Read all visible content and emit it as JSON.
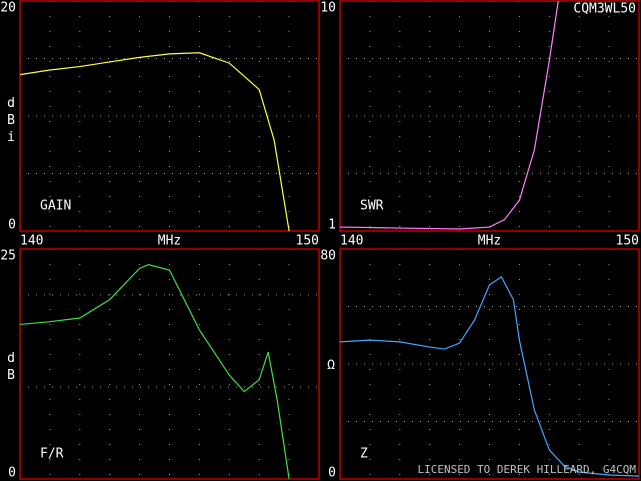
{
  "labels": {
    "model": "CQM3WL50",
    "license": "LICENSED TO DEREK HILLEARD, G4CQM"
  },
  "chart_data": [
    {
      "type": "line",
      "annotation": "GAIN",
      "ylabel": "dBi",
      "xlabel": "MHz",
      "xlim": [
        140,
        150
      ],
      "xticks": [
        140,
        150
      ],
      "xgrid": [
        141,
        142,
        143,
        144,
        145,
        146,
        147,
        148,
        149
      ],
      "ylim": [
        0,
        20
      ],
      "yticks": [
        0,
        20
      ],
      "ygrid": [
        5,
        10,
        15
      ],
      "x": [
        140,
        141,
        142,
        143,
        144,
        145,
        146,
        147,
        148,
        148.5,
        149
      ],
      "series": [
        {
          "color": "#ffff40",
          "values": [
            13.6,
            14.0,
            14.3,
            14.7,
            15.1,
            15.4,
            15.5,
            14.6,
            12.3,
            7.9,
            0
          ]
        }
      ]
    },
    {
      "type": "line",
      "annotation": "SWR",
      "xlabel": "MHz",
      "log_y": true,
      "xlim": [
        140,
        150
      ],
      "xticks": [
        140,
        150
      ],
      "xgrid": [
        141,
        142,
        143,
        144,
        145,
        146,
        147,
        148,
        149
      ],
      "ylim": [
        1,
        10
      ],
      "yticks": [
        1,
        10
      ],
      "ygrid": [
        1.78,
        3.16,
        5.62
      ],
      "x": [
        140,
        142,
        144,
        145,
        145.5,
        146,
        146.5,
        147,
        147.3
      ],
      "series": [
        {
          "color": "#ff80ff",
          "values": [
            1.04,
            1.03,
            1.02,
            1.04,
            1.12,
            1.36,
            2.25,
            5.5,
            10
          ]
        }
      ]
    },
    {
      "type": "line",
      "annotation": "F/R",
      "ylabel": "dB",
      "xlim": [
        140,
        150
      ],
      "xgrid": [
        141,
        142,
        143,
        144,
        145,
        146,
        147,
        148,
        149
      ],
      "ylim": [
        0,
        25
      ],
      "yticks": [
        0,
        25
      ],
      "ygrid": [
        10,
        20
      ],
      "x": [
        140,
        141,
        142,
        143,
        144,
        144.3,
        145,
        146,
        147,
        147.5,
        148,
        148.3,
        148.6,
        149
      ],
      "series": [
        {
          "color": "#40e040",
          "values": [
            16.8,
            17.1,
            17.5,
            19.5,
            22.9,
            23.3,
            22.7,
            16.2,
            11.3,
            9.5,
            10.8,
            13.8,
            8.6,
            0
          ]
        }
      ]
    },
    {
      "type": "line",
      "annotation": "Z",
      "ylabel": "Ω",
      "xlim": [
        140,
        150
      ],
      "xgrid": [
        141,
        142,
        143,
        144,
        145,
        146,
        147,
        148,
        149
      ],
      "ylim": [
        0,
        80
      ],
      "yticks": [
        0,
        80
      ],
      "ygrid": [
        20,
        40,
        60
      ],
      "x": [
        140,
        141,
        142,
        143,
        143.5,
        144,
        144.5,
        145,
        145.4,
        145.8,
        146,
        146.5,
        147,
        147.5,
        148,
        149,
        150
      ],
      "series": [
        {
          "color": "#40a8ff",
          "values": [
            47.7,
            48.3,
            47.7,
            45.9,
            45.2,
            47.3,
            55.3,
            67.5,
            70.3,
            62.3,
            48.3,
            24,
            10.1,
            4.5,
            2.4,
            1.4,
            1.0
          ]
        }
      ]
    }
  ]
}
